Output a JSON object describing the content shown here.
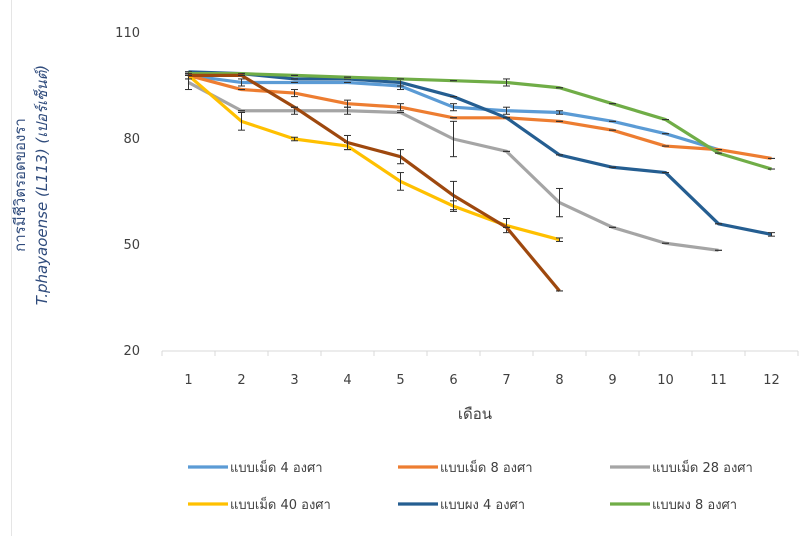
{
  "chart_data": {
    "type": "line",
    "title": "",
    "xlabel": "เดือน",
    "ylabel_line1": "การมีชีวิตรอดของรา",
    "ylabel_line2": "T.phayaoense (L113) (เปอร์เซ็นต์)",
    "categories": [
      "1",
      "2",
      "3",
      "4",
      "5",
      "6",
      "7",
      "8",
      "9",
      "10",
      "11",
      "12"
    ],
    "y_ticks": [
      20,
      50,
      80,
      110
    ],
    "ylim": [
      20,
      110
    ],
    "grid": false,
    "legend_position": "bottom",
    "series": [
      {
        "name": "แบบเม็ด 4 องศา",
        "color": "#5b9bd5",
        "values": [
          98,
          96,
          96,
          96,
          95,
          89,
          88,
          87.5,
          85,
          81.5,
          77,
          null
        ],
        "errors": [
          1,
          1,
          0,
          0,
          1,
          1,
          1,
          0.5,
          0,
          0,
          0,
          null
        ]
      },
      {
        "name": "แบบเม็ด 8 องศา",
        "color": "#ed7d31",
        "values": [
          98,
          94,
          93,
          90,
          89,
          86,
          86,
          85,
          82.5,
          78,
          77,
          74.5
        ],
        "errors": [
          0,
          0,
          1,
          1,
          1,
          0,
          0,
          0,
          0,
          0,
          0,
          0
        ]
      },
      {
        "name": "แบบเม็ด 28 องศา",
        "color": "#a5a5a5",
        "values": [
          96,
          88,
          88,
          88,
          87.5,
          80,
          76.5,
          62,
          55,
          50.5,
          48.5,
          null
        ],
        "errors": [
          2,
          0,
          1,
          1,
          0,
          5,
          0,
          4,
          0,
          0,
          0,
          null
        ]
      },
      {
        "name": "แบบเม็ด 40 องศา",
        "color": "#ffc000",
        "values": [
          98,
          85,
          80,
          78,
          68,
          61,
          55.5,
          51.5,
          null,
          null,
          null,
          null
        ],
        "errors": [
          1,
          2.5,
          0.5,
          1,
          2.5,
          1.5,
          2,
          0.5,
          null,
          null,
          null,
          null
        ]
      },
      {
        "name": "แบบผง 4 องศา",
        "color": "#255e91",
        "values": [
          99,
          98.5,
          97,
          97,
          96,
          92,
          86,
          75.5,
          72,
          70.5,
          56,
          53
        ],
        "errors": [
          0,
          0,
          0,
          0,
          1,
          0,
          0,
          0,
          0,
          0,
          0,
          0.5
        ]
      },
      {
        "name": "แบบผง 8 องศา",
        "color": "#70ad47",
        "values": [
          98.5,
          98.5,
          98,
          97.5,
          97,
          96.5,
          96,
          94.5,
          90,
          85.5,
          76,
          71.5
        ],
        "errors": [
          0,
          0,
          0,
          0,
          0,
          0,
          1,
          0,
          0,
          0,
          0,
          0
        ]
      },
      {
        "name": "",
        "color": "#9e480e",
        "values": [
          98,
          98,
          89,
          79,
          75,
          64,
          55,
          37,
          null,
          null,
          null,
          null
        ],
        "errors": [
          0,
          0,
          0,
          2,
          2,
          4,
          0,
          0,
          null,
          null,
          null,
          null
        ]
      }
    ]
  }
}
